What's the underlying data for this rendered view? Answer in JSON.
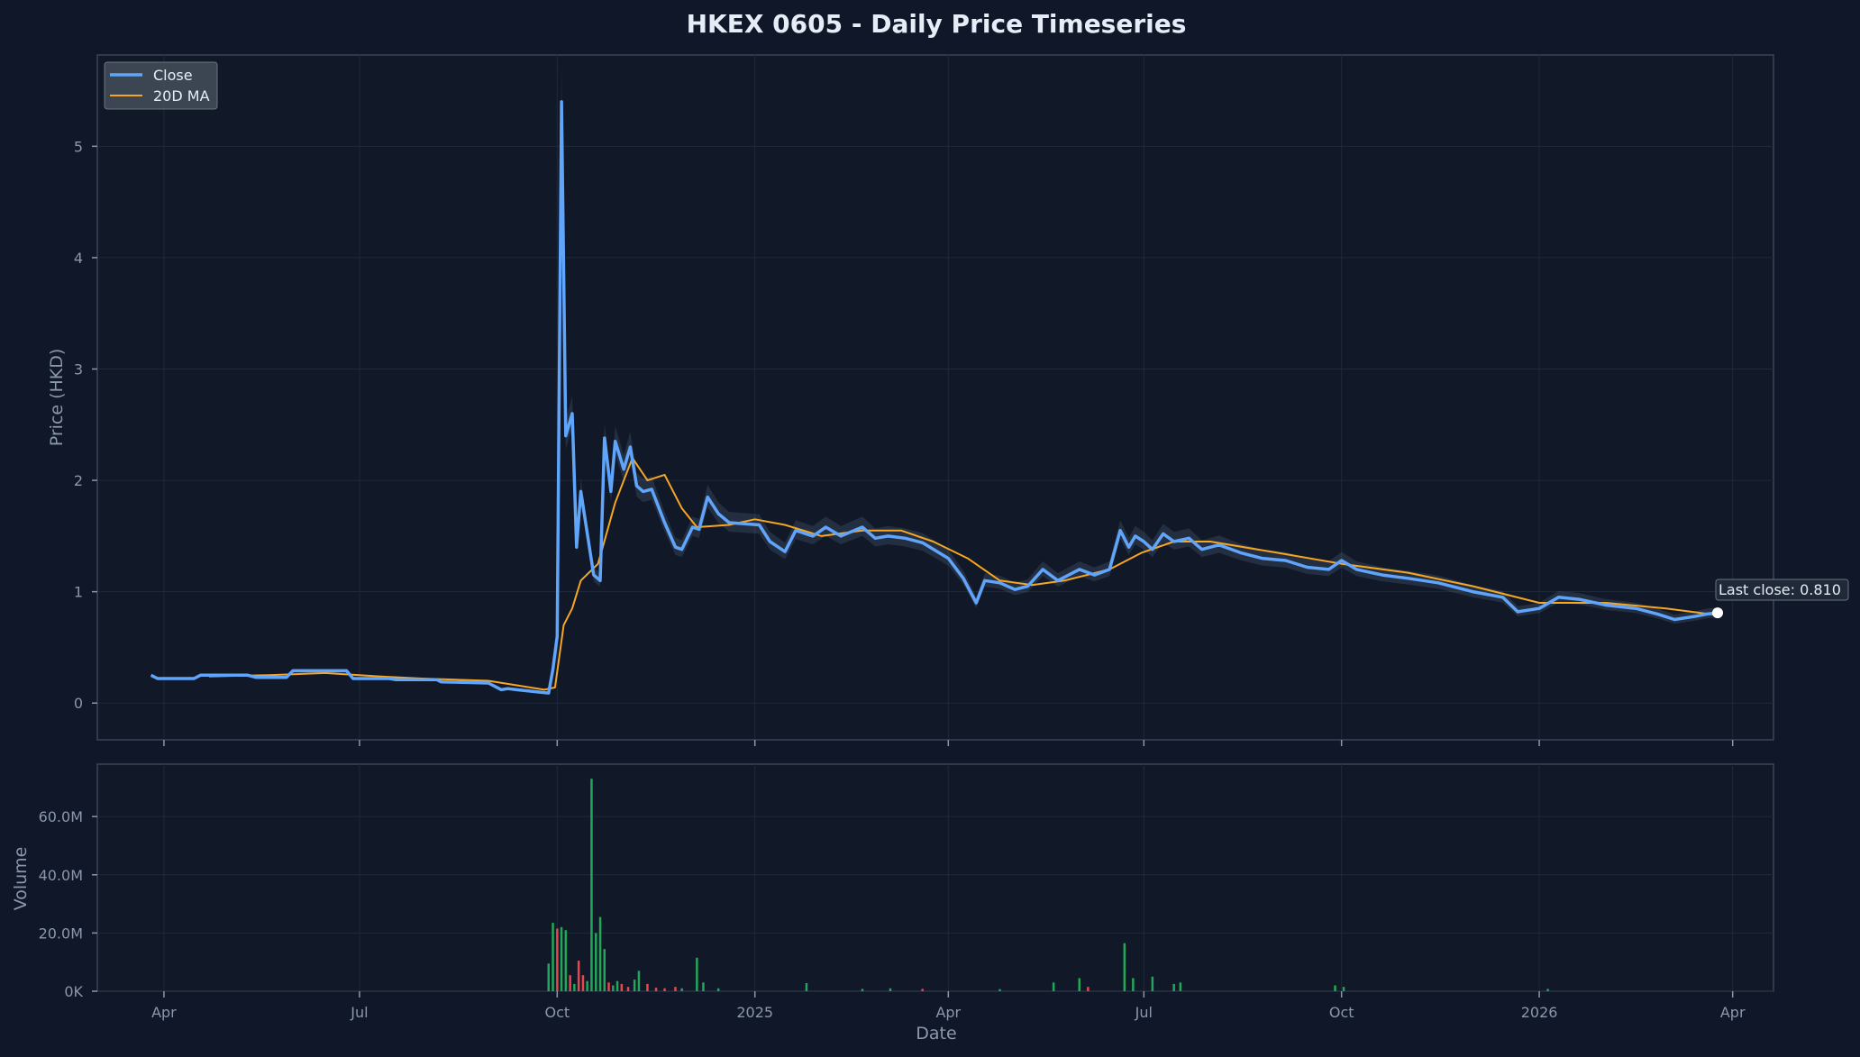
{
  "chart_data": {
    "type": "line",
    "title": "HKEX 0605 - Daily Price Timeseries",
    "xlabel": "Date",
    "ylabel": "Price (HKD)",
    "volume_label": "Volume",
    "xlim": [
      "2024-03-01",
      "2026-04-20"
    ],
    "ylim": [
      -0.33,
      5.82
    ],
    "volume_ylim": [
      0,
      78000000
    ],
    "x_ticks": [
      {
        "date": "2024-04-01",
        "label": "Apr"
      },
      {
        "date": "2024-07-01",
        "label": "Jul"
      },
      {
        "date": "2024-10-01",
        "label": "Oct"
      },
      {
        "date": "2025-01-01",
        "label": "2025"
      },
      {
        "date": "2025-04-01",
        "label": "Apr"
      },
      {
        "date": "2025-07-01",
        "label": "Jul"
      },
      {
        "date": "2025-10-01",
        "label": "Oct"
      },
      {
        "date": "2026-01-01",
        "label": "2026"
      },
      {
        "date": "2026-04-01",
        "label": "Apr"
      }
    ],
    "price_ticks": [
      {
        "value": 0,
        "label": "0"
      },
      {
        "value": 1,
        "label": "1"
      },
      {
        "value": 2,
        "label": "2"
      },
      {
        "value": 3,
        "label": "3"
      },
      {
        "value": 4,
        "label": "4"
      },
      {
        "value": 5,
        "label": "5"
      }
    ],
    "volume_ticks": [
      {
        "value": 0,
        "label": "0K"
      },
      {
        "value": 20000000,
        "label": "20.0M"
      },
      {
        "value": 40000000,
        "label": "40.0M"
      },
      {
        "value": 60000000,
        "label": "60.0M"
      }
    ],
    "grid": true,
    "legend_position": "top-left",
    "series": [
      {
        "name": "Close",
        "color": "#60a5fa",
        "points": [
          [
            "2024-03-26",
            0.25
          ],
          [
            "2024-03-29",
            0.22
          ],
          [
            "2024-04-15",
            0.22
          ],
          [
            "2024-04-18",
            0.25
          ],
          [
            "2024-05-10",
            0.25
          ],
          [
            "2024-05-14",
            0.23
          ],
          [
            "2024-05-28",
            0.23
          ],
          [
            "2024-05-31",
            0.29
          ],
          [
            "2024-06-25",
            0.29
          ],
          [
            "2024-06-28",
            0.22
          ],
          [
            "2024-07-15",
            0.22
          ],
          [
            "2024-07-18",
            0.21
          ],
          [
            "2024-08-06",
            0.21
          ],
          [
            "2024-08-08",
            0.19
          ],
          [
            "2024-08-30",
            0.18
          ],
          [
            "2024-09-05",
            0.12
          ],
          [
            "2024-09-08",
            0.13
          ],
          [
            "2024-09-12",
            0.12
          ],
          [
            "2024-09-22",
            0.1
          ],
          [
            "2024-09-27",
            0.09
          ],
          [
            "2024-09-29",
            0.3
          ],
          [
            "2024-10-01",
            0.6
          ],
          [
            "2024-10-03",
            5.4
          ],
          [
            "2024-10-05",
            2.4
          ],
          [
            "2024-10-08",
            2.6
          ],
          [
            "2024-10-10",
            1.4
          ],
          [
            "2024-10-12",
            1.9
          ],
          [
            "2024-10-18",
            1.15
          ],
          [
            "2024-10-21",
            1.1
          ],
          [
            "2024-10-23",
            2.38
          ],
          [
            "2024-10-26",
            1.9
          ],
          [
            "2024-10-28",
            2.35
          ],
          [
            "2024-11-01",
            2.1
          ],
          [
            "2024-11-04",
            2.3
          ],
          [
            "2024-11-07",
            1.95
          ],
          [
            "2024-11-10",
            1.9
          ],
          [
            "2024-11-14",
            1.92
          ],
          [
            "2024-11-20",
            1.62
          ],
          [
            "2024-11-25",
            1.4
          ],
          [
            "2024-11-28",
            1.38
          ],
          [
            "2024-12-03",
            1.58
          ],
          [
            "2024-12-06",
            1.56
          ],
          [
            "2024-12-10",
            1.85
          ],
          [
            "2024-12-15",
            1.7
          ],
          [
            "2024-12-20",
            1.62
          ],
          [
            "2025-01-03",
            1.6
          ],
          [
            "2025-01-08",
            1.45
          ],
          [
            "2025-01-15",
            1.36
          ],
          [
            "2025-01-20",
            1.55
          ],
          [
            "2025-01-28",
            1.5
          ],
          [
            "2025-02-03",
            1.58
          ],
          [
            "2025-02-10",
            1.5
          ],
          [
            "2025-02-20",
            1.58
          ],
          [
            "2025-02-26",
            1.48
          ],
          [
            "2025-03-04",
            1.5
          ],
          [
            "2025-03-12",
            1.48
          ],
          [
            "2025-03-20",
            1.44
          ],
          [
            "2025-04-01",
            1.3
          ],
          [
            "2025-04-08",
            1.12
          ],
          [
            "2025-04-14",
            0.9
          ],
          [
            "2025-04-18",
            1.1
          ],
          [
            "2025-04-25",
            1.08
          ],
          [
            "2025-05-02",
            1.02
          ],
          [
            "2025-05-08",
            1.05
          ],
          [
            "2025-05-15",
            1.2
          ],
          [
            "2025-05-22",
            1.1
          ],
          [
            "2025-06-01",
            1.2
          ],
          [
            "2025-06-08",
            1.15
          ],
          [
            "2025-06-15",
            1.2
          ],
          [
            "2025-06-20",
            1.55
          ],
          [
            "2025-06-24",
            1.4
          ],
          [
            "2025-06-27",
            1.5
          ],
          [
            "2025-07-01",
            1.45
          ],
          [
            "2025-07-05",
            1.38
          ],
          [
            "2025-07-10",
            1.52
          ],
          [
            "2025-07-15",
            1.45
          ],
          [
            "2025-07-22",
            1.48
          ],
          [
            "2025-07-28",
            1.38
          ],
          [
            "2025-08-05",
            1.42
          ],
          [
            "2025-08-15",
            1.35
          ],
          [
            "2025-08-25",
            1.3
          ],
          [
            "2025-09-05",
            1.28
          ],
          [
            "2025-09-15",
            1.22
          ],
          [
            "2025-09-25",
            1.2
          ],
          [
            "2025-10-01",
            1.28
          ],
          [
            "2025-10-08",
            1.2
          ],
          [
            "2025-10-20",
            1.15
          ],
          [
            "2025-11-01",
            1.12
          ],
          [
            "2025-11-15",
            1.08
          ],
          [
            "2025-12-01",
            1.0
          ],
          [
            "2025-12-15",
            0.95
          ],
          [
            "2025-12-22",
            0.82
          ],
          [
            "2026-01-01",
            0.85
          ],
          [
            "2026-01-10",
            0.95
          ],
          [
            "2026-01-20",
            0.93
          ],
          [
            "2026-02-01",
            0.88
          ],
          [
            "2026-02-15",
            0.85
          ],
          [
            "2026-02-25",
            0.8
          ],
          [
            "2026-03-05",
            0.75
          ],
          [
            "2026-03-15",
            0.78
          ],
          [
            "2026-03-20",
            0.8
          ],
          [
            "2026-03-25",
            0.81
          ]
        ]
      },
      {
        "name": "20D MA",
        "color": "#f5a623",
        "points": [
          [
            "2024-04-22",
            0.24
          ],
          [
            "2024-05-20",
            0.25
          ],
          [
            "2024-06-15",
            0.27
          ],
          [
            "2024-07-10",
            0.24
          ],
          [
            "2024-07-30",
            0.22
          ],
          [
            "2024-08-30",
            0.2
          ],
          [
            "2024-09-25",
            0.12
          ],
          [
            "2024-09-30",
            0.14
          ],
          [
            "2024-10-04",
            0.7
          ],
          [
            "2024-10-08",
            0.85
          ],
          [
            "2024-10-12",
            1.1
          ],
          [
            "2024-10-20",
            1.25
          ],
          [
            "2024-10-28",
            1.8
          ],
          [
            "2024-11-05",
            2.2
          ],
          [
            "2024-11-12",
            2.0
          ],
          [
            "2024-11-20",
            2.05
          ],
          [
            "2024-11-28",
            1.75
          ],
          [
            "2024-12-05",
            1.58
          ],
          [
            "2024-12-20",
            1.6
          ],
          [
            "2025-01-01",
            1.65
          ],
          [
            "2025-01-15",
            1.6
          ],
          [
            "2025-02-01",
            1.5
          ],
          [
            "2025-02-20",
            1.55
          ],
          [
            "2025-03-10",
            1.55
          ],
          [
            "2025-03-25",
            1.45
          ],
          [
            "2025-04-10",
            1.3
          ],
          [
            "2025-04-25",
            1.1
          ],
          [
            "2025-05-10",
            1.06
          ],
          [
            "2025-05-25",
            1.1
          ],
          [
            "2025-06-15",
            1.2
          ],
          [
            "2025-06-30",
            1.35
          ],
          [
            "2025-07-15",
            1.45
          ],
          [
            "2025-08-01",
            1.45
          ],
          [
            "2025-09-01",
            1.35
          ],
          [
            "2025-10-01",
            1.25
          ],
          [
            "2025-11-01",
            1.17
          ],
          [
            "2025-12-01",
            1.05
          ],
          [
            "2026-01-01",
            0.9
          ],
          [
            "2026-02-01",
            0.9
          ],
          [
            "2026-03-01",
            0.85
          ],
          [
            "2026-03-25",
            0.79
          ]
        ]
      }
    ],
    "last_close": {
      "date": "2026-03-25",
      "value": 0.81,
      "label": "Last close: 0.810"
    },
    "volume": {
      "up_color": "#22a75a",
      "down_color": "#e5484d",
      "bars": [
        [
          "2024-09-27",
          9500000,
          "up"
        ],
        [
          "2024-09-29",
          23500000,
          "up"
        ],
        [
          "2024-10-01",
          21500000,
          "down"
        ],
        [
          "2024-10-03",
          22000000,
          "up"
        ],
        [
          "2024-10-05",
          21000000,
          "up"
        ],
        [
          "2024-10-07",
          5500000,
          "down"
        ],
        [
          "2024-10-09",
          2500000,
          "up"
        ],
        [
          "2024-10-11",
          10500000,
          "down"
        ],
        [
          "2024-10-13",
          5500000,
          "down"
        ],
        [
          "2024-10-15",
          3500000,
          "up"
        ],
        [
          "2024-10-17",
          73000000,
          "up"
        ],
        [
          "2024-10-19",
          20000000,
          "up"
        ],
        [
          "2024-10-21",
          25500000,
          "up"
        ],
        [
          "2024-10-23",
          14500000,
          "up"
        ],
        [
          "2024-10-25",
          3000000,
          "down"
        ],
        [
          "2024-10-27",
          2000000,
          "up"
        ],
        [
          "2024-10-29",
          3500000,
          "up"
        ],
        [
          "2024-10-31",
          2500000,
          "down"
        ],
        [
          "2024-11-03",
          1500000,
          "down"
        ],
        [
          "2024-11-06",
          4000000,
          "up"
        ],
        [
          "2024-11-08",
          7000000,
          "up"
        ],
        [
          "2024-11-12",
          2500000,
          "down"
        ],
        [
          "2024-11-16",
          1200000,
          "down"
        ],
        [
          "2024-11-20",
          1000000,
          "down"
        ],
        [
          "2024-11-25",
          1500000,
          "down"
        ],
        [
          "2024-11-28",
          1000000,
          "up"
        ],
        [
          "2024-12-05",
          11500000,
          "up"
        ],
        [
          "2024-12-08",
          3000000,
          "up"
        ],
        [
          "2024-12-15",
          1000000,
          "up"
        ],
        [
          "2025-01-25",
          2800000,
          "up"
        ],
        [
          "2025-02-20",
          800000,
          "up"
        ],
        [
          "2025-03-05",
          1000000,
          "up"
        ],
        [
          "2025-03-20",
          800000,
          "down"
        ],
        [
          "2025-04-25",
          700000,
          "up"
        ],
        [
          "2025-05-20",
          3000000,
          "up"
        ],
        [
          "2025-06-01",
          4500000,
          "up"
        ],
        [
          "2025-06-05",
          1500000,
          "down"
        ],
        [
          "2025-06-22",
          16500000,
          "up"
        ],
        [
          "2025-06-26",
          4500000,
          "up"
        ],
        [
          "2025-07-05",
          5000000,
          "up"
        ],
        [
          "2025-07-15",
          2500000,
          "up"
        ],
        [
          "2025-07-18",
          3000000,
          "up"
        ],
        [
          "2025-09-28",
          2000000,
          "up"
        ],
        [
          "2025-10-02",
          1500000,
          "up"
        ],
        [
          "2026-01-05",
          800000,
          "up"
        ]
      ]
    }
  }
}
